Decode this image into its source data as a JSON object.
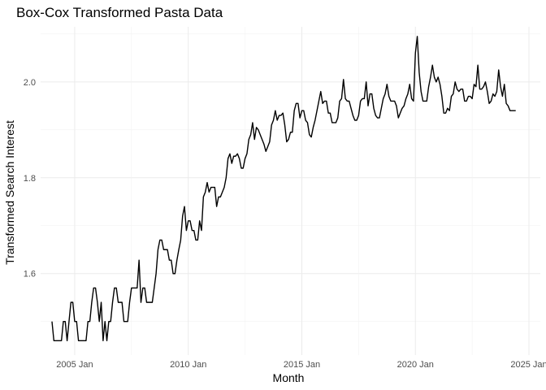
{
  "chart_data": {
    "type": "line",
    "title": "Box-Cox Transformed Pasta Data",
    "xlabel": "Month",
    "ylabel": "Transformed Search Interest",
    "x_ticks": [
      "2005 Jan",
      "2010 Jan",
      "2015 Jan",
      "2020 Jan",
      "2025 Jan"
    ],
    "y_ticks": [
      "1.6",
      "1.8",
      "2.0"
    ],
    "xlim": [
      "2003-07",
      "2025-07"
    ],
    "ylim": [
      1.43,
      2.115
    ],
    "grid": true,
    "series": [
      {
        "x": [
          "2004-01",
          "2004-02",
          "2004-03",
          "2004-04",
          "2004-05",
          "2004-06",
          "2004-07",
          "2004-08",
          "2004-09",
          "2004-10",
          "2004-11",
          "2004-12",
          "2005-01",
          "2005-02",
          "2005-03",
          "2005-04",
          "2005-05",
          "2005-06",
          "2005-07",
          "2005-08",
          "2005-09",
          "2005-10",
          "2005-11",
          "2005-12",
          "2006-01",
          "2006-02",
          "2006-03",
          "2006-04",
          "2006-05",
          "2006-06",
          "2006-07",
          "2006-08",
          "2006-09",
          "2006-10",
          "2006-11",
          "2006-12",
          "2007-01",
          "2007-02",
          "2007-03",
          "2007-04",
          "2007-05",
          "2007-06",
          "2007-07",
          "2007-08",
          "2007-09",
          "2007-10",
          "2007-11",
          "2007-12",
          "2008-01",
          "2008-02",
          "2008-03",
          "2008-04",
          "2008-05",
          "2008-06",
          "2008-07",
          "2008-08",
          "2008-09",
          "2008-10",
          "2008-11",
          "2008-12",
          "2009-01",
          "2009-02",
          "2009-03",
          "2009-04",
          "2009-05",
          "2009-06",
          "2009-07",
          "2009-08",
          "2009-09",
          "2009-10",
          "2009-11",
          "2009-12",
          "2010-01",
          "2010-02",
          "2010-03",
          "2010-04",
          "2010-05",
          "2010-06",
          "2010-07",
          "2010-08",
          "2010-09",
          "2010-10",
          "2010-11",
          "2010-12",
          "2011-01",
          "2011-02",
          "2011-03",
          "2011-04",
          "2011-05",
          "2011-06",
          "2011-07",
          "2011-08",
          "2011-09",
          "2011-10",
          "2011-11",
          "2011-12",
          "2012-01",
          "2012-02",
          "2012-03",
          "2012-04",
          "2012-05",
          "2012-06",
          "2012-07",
          "2012-08",
          "2012-09",
          "2012-10",
          "2012-11",
          "2012-12",
          "2013-01",
          "2013-02",
          "2013-03",
          "2013-04",
          "2013-05",
          "2013-06",
          "2013-07",
          "2013-08",
          "2013-09",
          "2013-10",
          "2013-11",
          "2013-12",
          "2014-01",
          "2014-02",
          "2014-03",
          "2014-04",
          "2014-05",
          "2014-06",
          "2014-07",
          "2014-08",
          "2014-09",
          "2014-10",
          "2014-11",
          "2014-12",
          "2015-01",
          "2015-02",
          "2015-03",
          "2015-04",
          "2015-05",
          "2015-06",
          "2015-07",
          "2015-08",
          "2015-09",
          "2015-10",
          "2015-11",
          "2015-12",
          "2016-01",
          "2016-02",
          "2016-03",
          "2016-04",
          "2016-05",
          "2016-06",
          "2016-07",
          "2016-08",
          "2016-09",
          "2016-10",
          "2016-11",
          "2016-12",
          "2017-01",
          "2017-02",
          "2017-03",
          "2017-04",
          "2017-05",
          "2017-06",
          "2017-07",
          "2017-08",
          "2017-09",
          "2017-10",
          "2017-11",
          "2017-12",
          "2018-01",
          "2018-02",
          "2018-03",
          "2018-04",
          "2018-05",
          "2018-06",
          "2018-07",
          "2018-08",
          "2018-09",
          "2018-10",
          "2018-11",
          "2018-12",
          "2019-01",
          "2019-02",
          "2019-03",
          "2019-04",
          "2019-05",
          "2019-06",
          "2019-07",
          "2019-08",
          "2019-09",
          "2019-10",
          "2019-11",
          "2019-12",
          "2020-01",
          "2020-02",
          "2020-03",
          "2020-04",
          "2020-05",
          "2020-06",
          "2020-07",
          "2020-08",
          "2020-09",
          "2020-10",
          "2020-11",
          "2020-12",
          "2021-01",
          "2021-02",
          "2021-03",
          "2021-04",
          "2021-05",
          "2021-06",
          "2021-07",
          "2021-08",
          "2021-09",
          "2021-10",
          "2021-11",
          "2021-12",
          "2022-01",
          "2022-02",
          "2022-03",
          "2022-04",
          "2022-05",
          "2022-06",
          "2022-07",
          "2022-08",
          "2022-09",
          "2022-10",
          "2022-11",
          "2022-12",
          "2023-01",
          "2023-02",
          "2023-03",
          "2023-04",
          "2023-05",
          "2023-06",
          "2023-07",
          "2023-08",
          "2023-09",
          "2023-10",
          "2023-11",
          "2023-12",
          "2024-01",
          "2024-02",
          "2024-03",
          "2024-04",
          "2024-05",
          "2024-06"
        ],
        "values": [
          1.5,
          1.46,
          1.46,
          1.46,
          1.46,
          1.46,
          1.5,
          1.5,
          1.46,
          1.5,
          1.54,
          1.54,
          1.5,
          1.5,
          1.46,
          1.46,
          1.46,
          1.46,
          1.46,
          1.5,
          1.5,
          1.54,
          1.57,
          1.57,
          1.54,
          1.5,
          1.54,
          1.46,
          1.5,
          1.46,
          1.5,
          1.5,
          1.54,
          1.57,
          1.57,
          1.54,
          1.54,
          1.54,
          1.5,
          1.5,
          1.5,
          1.54,
          1.57,
          1.57,
          1.57,
          1.57,
          1.628,
          1.54,
          1.57,
          1.57,
          1.54,
          1.54,
          1.54,
          1.54,
          1.57,
          1.6,
          1.65,
          1.67,
          1.67,
          1.65,
          1.65,
          1.65,
          1.628,
          1.628,
          1.6,
          1.6,
          1.628,
          1.65,
          1.67,
          1.72,
          1.74,
          1.69,
          1.71,
          1.71,
          1.69,
          1.69,
          1.67,
          1.67,
          1.71,
          1.69,
          1.76,
          1.77,
          1.79,
          1.77,
          1.78,
          1.78,
          1.78,
          1.74,
          1.76,
          1.76,
          1.77,
          1.78,
          1.8,
          1.84,
          1.85,
          1.83,
          1.845,
          1.845,
          1.85,
          1.84,
          1.82,
          1.82,
          1.84,
          1.85,
          1.88,
          1.89,
          1.915,
          1.88,
          1.905,
          1.9,
          1.89,
          1.88,
          1.87,
          1.855,
          1.865,
          1.875,
          1.91,
          1.92,
          1.94,
          1.92,
          1.93,
          1.93,
          1.935,
          1.91,
          1.875,
          1.88,
          1.895,
          1.895,
          1.94,
          1.955,
          1.955,
          1.925,
          1.94,
          1.94,
          1.92,
          1.915,
          1.89,
          1.885,
          1.905,
          1.92,
          1.94,
          1.96,
          1.98,
          1.955,
          1.96,
          1.96,
          1.935,
          1.935,
          1.915,
          1.915,
          1.915,
          1.925,
          1.96,
          1.965,
          2.005,
          1.965,
          1.96,
          1.96,
          1.945,
          1.93,
          1.92,
          1.92,
          1.93,
          1.96,
          1.965,
          1.965,
          2.0,
          1.95,
          1.975,
          1.975,
          1.945,
          1.93,
          1.925,
          1.925,
          1.945,
          1.965,
          1.975,
          1.995,
          1.97,
          1.96,
          1.96,
          1.96,
          1.95,
          1.925,
          1.935,
          1.945,
          1.95,
          1.965,
          1.975,
          1.995,
          1.965,
          1.96,
          2.06,
          2.095,
          2.02,
          1.98,
          1.96,
          1.96,
          1.96,
          1.99,
          2.01,
          2.035,
          2.01,
          2.0,
          2.01,
          1.995,
          1.97,
          1.935,
          1.935,
          1.945,
          1.94,
          1.97,
          1.975,
          2.0,
          1.985,
          1.98,
          1.985,
          1.985,
          1.96,
          1.96,
          1.97,
          1.97,
          1.965,
          1.995,
          1.99,
          2.035,
          1.985,
          1.985,
          1.99,
          2.0,
          1.98,
          1.955,
          1.96,
          1.975,
          1.97,
          1.98,
          2.025,
          1.99,
          1.97,
          1.995,
          1.955,
          1.95,
          1.94,
          1.94,
          1.94,
          1.94
        ]
      }
    ]
  }
}
